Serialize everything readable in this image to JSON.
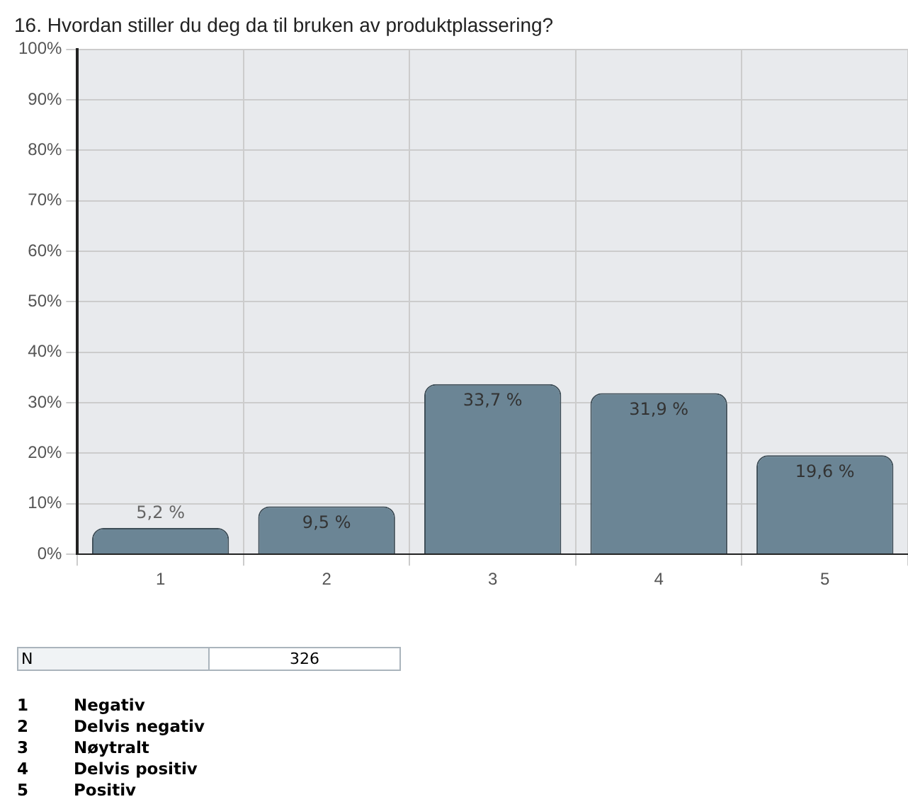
{
  "chart_data": {
    "type": "bar",
    "title": "16. Hvordan stiller du deg da til bruken av produktplassering?",
    "categories": [
      "1",
      "2",
      "3",
      "4",
      "5"
    ],
    "values": [
      5.2,
      9.5,
      33.7,
      31.9,
      19.6
    ],
    "value_labels": [
      "5,2 %",
      "9,5 %",
      "33,7 %",
      "31,9 %",
      "19,6 %"
    ],
    "color": "#6b8595",
    "ylim": [
      0,
      100
    ],
    "yticks": [
      {
        "value": 0,
        "label": "0%"
      },
      {
        "value": 10,
        "label": "10%"
      },
      {
        "value": 20,
        "label": "20%"
      },
      {
        "value": 30,
        "label": "30%"
      },
      {
        "value": 40,
        "label": "40%"
      },
      {
        "value": 50,
        "label": "50%"
      },
      {
        "value": 60,
        "label": "60%"
      },
      {
        "value": 70,
        "label": "70%"
      },
      {
        "value": 80,
        "label": "80%"
      },
      {
        "value": 90,
        "label": "90%"
      },
      {
        "value": 100,
        "label": "100%"
      }
    ],
    "grid": true,
    "annotations": [
      "N",
      "326",
      "1",
      "Negativ",
      "2",
      "Delvis negativ",
      "3",
      "Nøytralt",
      "4",
      "Delvis positiv",
      "5",
      "Positiv"
    ]
  }
}
